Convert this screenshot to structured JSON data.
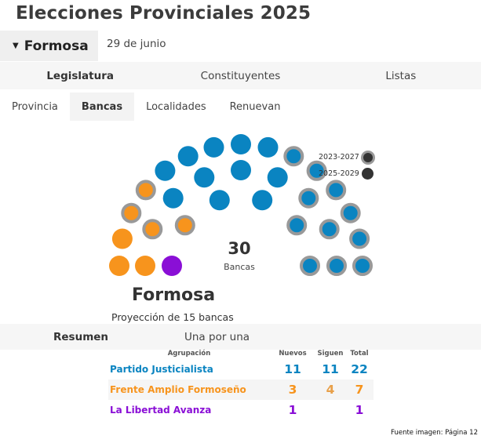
{
  "title": "Elecciones Provinciales 2025",
  "province_selector": {
    "label": "Formosa"
  },
  "date": "29 de junio",
  "main_tabs": [
    {
      "label": "Legislatura",
      "active": true
    },
    {
      "label": "Constituyentes",
      "active": false
    },
    {
      "label": "Listas",
      "active": false
    }
  ],
  "sub_tabs": [
    {
      "label": "Provincia",
      "active": false
    },
    {
      "label": "Bancas",
      "active": true
    },
    {
      "label": "Localidades",
      "active": false
    },
    {
      "label": "Renuevan",
      "active": false
    }
  ],
  "legend": [
    {
      "label": "2023-2027",
      "style": "ring"
    },
    {
      "label": "2025-2029",
      "style": "solid"
    }
  ],
  "colors": {
    "partido_justicialista": "#0a84c1",
    "frente_amplio_formoseno": "#f7941d",
    "la_libertad_avanza": "#8a0fd6",
    "ring": "#999999"
  },
  "chart_data": {
    "type": "parliament",
    "total_seats": 30,
    "total_label": "Bancas",
    "parties": [
      {
        "name": "La Libertad Avanza",
        "color": "#8a0fd6",
        "new": 1,
        "continuing": 0,
        "total": 1
      },
      {
        "name": "Frente Amplio Formoseño",
        "color": "#f7941d",
        "new": 3,
        "continuing": 4,
        "total": 7
      },
      {
        "name": "Partido Justicialista",
        "color": "#0a84c1",
        "new": 11,
        "continuing": 11,
        "total": 22
      }
    ]
  },
  "total_number": "30",
  "total_label": "Bancas",
  "province_name": "Formosa",
  "projection_text": "Proyección de 15 bancas",
  "view_tabs": [
    {
      "label": "Resumen",
      "active": true
    },
    {
      "label": "Una por una",
      "active": false
    }
  ],
  "table": {
    "headers": {
      "party": "Agrupación",
      "new": "Nuevos",
      "continuing": "Siguen",
      "total": "Total"
    },
    "rows": [
      {
        "party": "Partido Justicialista",
        "new": "11",
        "continuing": "11",
        "total": "22",
        "color": "#0a84c1"
      },
      {
        "party": "Frente Amplio Formoseño",
        "new": "3",
        "continuing": "4",
        "total": "7",
        "color": "#f7941d"
      },
      {
        "party": "La Libertad Avanza",
        "new": "1",
        "continuing": "",
        "total": "1",
        "color": "#8a0fd6"
      }
    ]
  },
  "source": "Fuente imagen: Página 12"
}
